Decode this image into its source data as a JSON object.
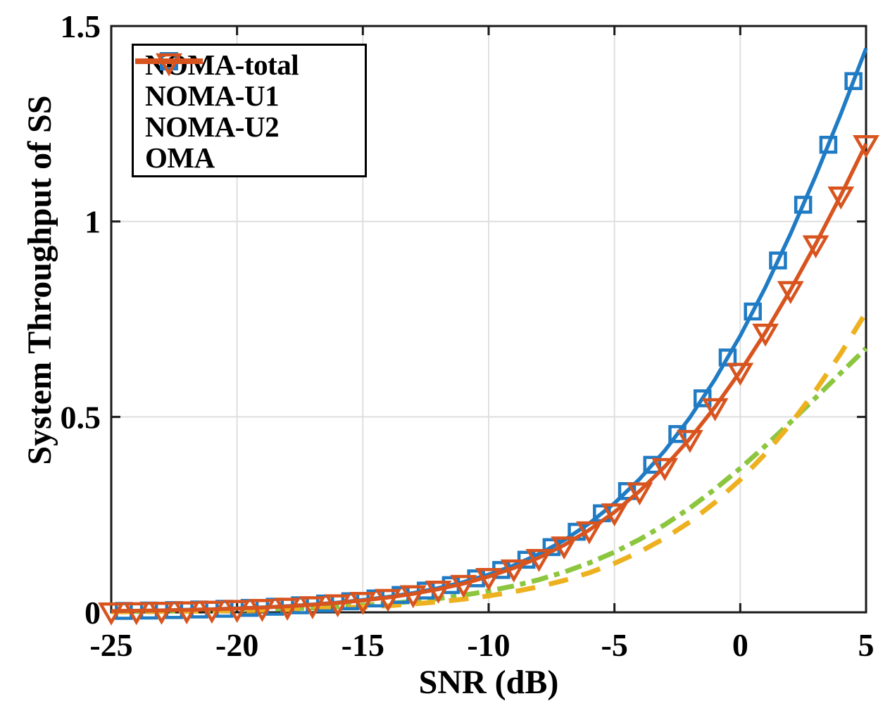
{
  "chart_data": {
    "type": "line",
    "title": "",
    "xlabel": "SNR (dB)",
    "ylabel": "System Throughput of SS",
    "xlim": [
      -25,
      5
    ],
    "ylim": [
      0,
      1.5
    ],
    "xticks": [
      -25,
      -20,
      -15,
      -10,
      -5,
      0,
      5
    ],
    "xtick_labels": [
      "-25",
      "-20",
      "-15",
      "-10",
      "-5",
      "0",
      "5"
    ],
    "yticks": [
      0,
      0.5,
      1,
      1.5
    ],
    "ytick_labels": [
      "0",
      "0.5",
      "1",
      "1.5"
    ],
    "grid": true,
    "legend_position": "top-left",
    "x": [
      -25,
      -24,
      -23,
      -22,
      -21,
      -20,
      -19,
      -18,
      -17,
      -16,
      -15,
      -14,
      -13,
      -12,
      -11,
      -10,
      -9,
      -8,
      -7,
      -6,
      -5,
      -4,
      -3,
      -2,
      -1,
      0,
      1,
      2,
      3,
      4,
      5
    ],
    "series": [
      {
        "name": "NOMA-total",
        "color": "#1F7BC4",
        "line_style": "solid",
        "marker": "square",
        "marker_x_offset": 0.5,
        "values": [
          0.0032,
          0.004,
          0.005,
          0.0064,
          0.008,
          0.01,
          0.0126,
          0.0159,
          0.02,
          0.0251,
          0.0315,
          0.0395,
          0.0494,
          0.0619,
          0.0774,
          0.0965,
          0.1201,
          0.1491,
          0.1846,
          0.2275,
          0.2793,
          0.341,
          0.4137,
          0.4986,
          0.5965,
          0.7075,
          0.8318,
          0.9686,
          1.117,
          1.2756,
          1.4427
        ]
      },
      {
        "name": "NOMA-U1",
        "color": "#8CC63F",
        "line_style": "dash-dot",
        "marker": "none",
        "values": [
          0.0018,
          0.0023,
          0.0029,
          0.0036,
          0.0046,
          0.0057,
          0.0072,
          0.0091,
          0.0114,
          0.0143,
          0.0179,
          0.0224,
          0.0281,
          0.0351,
          0.0438,
          0.0545,
          0.0676,
          0.0836,
          0.103,
          0.1263,
          0.154,
          0.1865,
          0.2241,
          0.2671,
          0.3154,
          0.3685,
          0.426,
          0.4865,
          0.5492,
          0.6126,
          0.6752
        ]
      },
      {
        "name": "NOMA-U2",
        "color": "#EDB120",
        "line_style": "dashed",
        "marker": "none",
        "values": [
          0.0014,
          0.0017,
          0.0022,
          0.0027,
          0.0034,
          0.0043,
          0.0054,
          0.0068,
          0.0086,
          0.0108,
          0.0136,
          0.017,
          0.0214,
          0.0268,
          0.0336,
          0.042,
          0.0525,
          0.0655,
          0.0816,
          0.1012,
          0.1253,
          0.1545,
          0.1897,
          0.2315,
          0.2812,
          0.339,
          0.4058,
          0.4821,
          0.5679,
          0.663,
          0.7674
        ]
      },
      {
        "name": "OMA",
        "color": "#D8541F",
        "line_style": "solid",
        "marker": "triangle-down",
        "marker_x_offset": 0,
        "values": [
          0.0031,
          0.0039,
          0.0049,
          0.0061,
          0.0077,
          0.0097,
          0.0122,
          0.0153,
          0.0192,
          0.0241,
          0.0302,
          0.0378,
          0.0472,
          0.059,
          0.0735,
          0.0914,
          0.1133,
          0.1399,
          0.172,
          0.2106,
          0.2565,
          0.3103,
          0.3728,
          0.4445,
          0.5257,
          0.6163,
          0.7164,
          0.8253,
          0.9425,
          1.0673,
          1.1988
        ]
      }
    ]
  },
  "colors": {
    "background": "#ffffff",
    "axis": "#1a1a1a",
    "grid": "#dcdcdc",
    "legend_border": "#000000",
    "text": "#000000"
  }
}
